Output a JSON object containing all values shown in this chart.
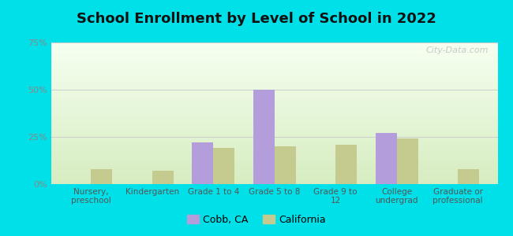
{
  "title": "School Enrollment by Level of School in 2022",
  "categories": [
    "Nursery,\npreschool",
    "Kindergarten",
    "Grade 1 to 4",
    "Grade 5 to 8",
    "Grade 9 to\n12",
    "College\nundergrad",
    "Graduate or\nprofessional"
  ],
  "cobb_values": [
    0,
    0,
    22,
    50,
    0,
    27,
    0
  ],
  "california_values": [
    8,
    7,
    19,
    20,
    21,
    24,
    8
  ],
  "cobb_color": "#b39ddb",
  "california_color": "#c5ca8e",
  "ylim": [
    0,
    75
  ],
  "yticks": [
    0,
    25,
    50,
    75
  ],
  "ytick_labels": [
    "0%",
    "25%",
    "50%",
    "75%"
  ],
  "background_outer": "#00e0e8",
  "grid_color": "#cccccc",
  "title_fontsize": 13,
  "legend_label_cobb": "Cobb, CA",
  "legend_label_california": "California",
  "bar_width": 0.35,
  "watermark": "City-Data.com",
  "gradient_top": "#f5fff0",
  "gradient_bottom": "#d6ecc0"
}
